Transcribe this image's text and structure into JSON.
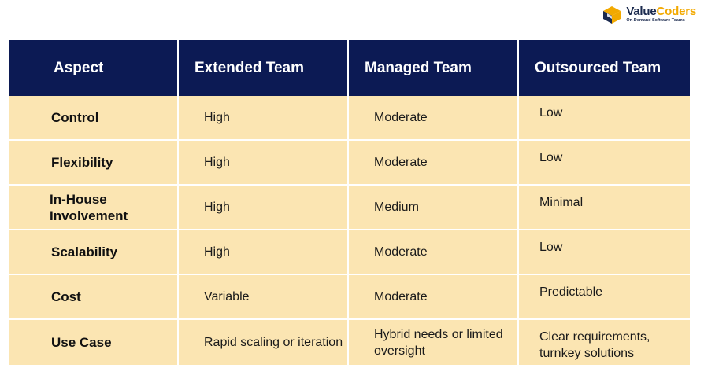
{
  "brand": {
    "name_part1": "Value",
    "name_part2": "Coders",
    "tagline": "On-Demand Software Teams",
    "colors": {
      "navy": "#1b2a4e",
      "gold": "#f2a900"
    }
  },
  "table": {
    "headers": [
      "Aspect",
      "Extended Team",
      "Managed Team",
      "Outsourced Team"
    ],
    "rows": [
      {
        "aspect": "Control",
        "extended": "High",
        "managed": "Moderate",
        "outsourced": "Low"
      },
      {
        "aspect": "Flexibility",
        "extended": "High",
        "managed": "Moderate",
        "outsourced": "Low"
      },
      {
        "aspect": "In-House Involvement",
        "extended": "High",
        "managed": "Medium",
        "outsourced": "Minimal"
      },
      {
        "aspect": "Scalability",
        "extended": "High",
        "managed": "Moderate",
        "outsourced": "Low"
      },
      {
        "aspect": "Cost",
        "extended": "Variable",
        "managed": "Moderate",
        "outsourced": "Predictable"
      },
      {
        "aspect": "Use Case",
        "extended": "Rapid scaling or iteration",
        "managed": "Hybrid needs or limited oversight",
        "outsourced": "Clear requirements, turnkey solutions"
      }
    ],
    "colors": {
      "header_bg": "#0c1a54",
      "cell_bg": "#fbe5b2"
    }
  }
}
